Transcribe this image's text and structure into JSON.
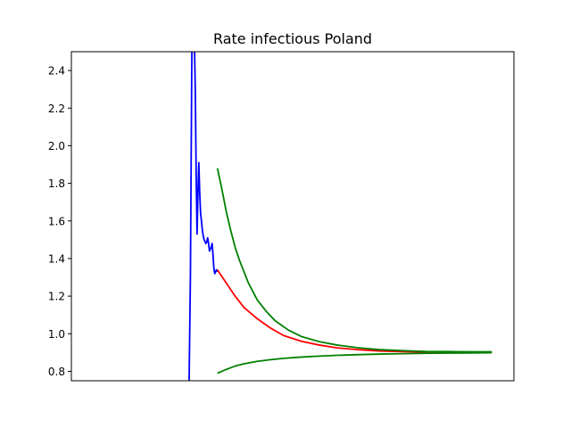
{
  "chart_data": {
    "type": "line",
    "title": "Rate infectious Poland",
    "xlabel": "",
    "ylabel": "",
    "xlim": [
      0,
      100
    ],
    "ylim": [
      0.75,
      2.5
    ],
    "yticks": [
      0.8,
      1.0,
      1.2,
      1.4,
      1.6,
      1.8,
      2.0,
      2.2,
      2.4
    ],
    "ytick_labels": [
      "0.8",
      "1.0",
      "1.2",
      "1.4",
      "1.6",
      "1.8",
      "2.0",
      "2.2",
      "2.4"
    ],
    "show_xticks": false,
    "grid": false,
    "series": [
      {
        "color": "#0000ff",
        "x": [
          26.6,
          26.9,
          27.2,
          27.4,
          27.6,
          27.8,
          28.0,
          28.2,
          28.4,
          28.6,
          28.8,
          29.0,
          29.2,
          29.4,
          29.6,
          29.8,
          30.0,
          30.2,
          30.4,
          30.6,
          30.8,
          31.0,
          31.2,
          31.4,
          31.6,
          31.8,
          32.0,
          32.2,
          32.4,
          32.6,
          32.8,
          33.0
        ],
        "y": [
          0.74,
          1.3,
          2.4,
          3.0,
          2.9,
          2.55,
          2.3,
          1.85,
          1.53,
          1.75,
          1.91,
          1.75,
          1.64,
          1.6,
          1.55,
          1.52,
          1.5,
          1.49,
          1.48,
          1.49,
          1.51,
          1.48,
          1.44,
          1.45,
          1.46,
          1.48,
          1.42,
          1.35,
          1.32,
          1.33,
          1.34,
          1.33
        ]
      },
      {
        "color": "#ff0000",
        "x": [
          33.0,
          35.0,
          37.0,
          39.0,
          42.0,
          45.0,
          48.0,
          52.0,
          56.0,
          60.0,
          65.0,
          70.0,
          75.0,
          80.0,
          85.0,
          90.0,
          95.0
        ],
        "y": [
          1.34,
          1.27,
          1.2,
          1.14,
          1.08,
          1.03,
          0.99,
          0.96,
          0.94,
          0.925,
          0.915,
          0.908,
          0.905,
          0.903,
          0.902,
          0.901,
          0.9
        ]
      },
      {
        "color": "#008000",
        "x": [
          33.0,
          34.0,
          35.0,
          36.0,
          37.0,
          38.0,
          40.0,
          42.0,
          44.0,
          46.0,
          49.0,
          52.0,
          56.0,
          60.0,
          65.0,
          70.0,
          75.0,
          80.0,
          85.0,
          90.0,
          95.0
        ],
        "y": [
          1.88,
          1.77,
          1.65,
          1.55,
          1.46,
          1.39,
          1.27,
          1.18,
          1.12,
          1.07,
          1.02,
          0.985,
          0.958,
          0.94,
          0.925,
          0.915,
          0.91,
          0.906,
          0.905,
          0.904,
          0.904
        ]
      },
      {
        "color": "#008000",
        "x": [
          33.0,
          35.0,
          37.0,
          39.0,
          42.0,
          45.0,
          48.0,
          52.0,
          56.0,
          60.0,
          65.0,
          70.0,
          75.0,
          80.0,
          85.0,
          90.0,
          95.0
        ],
        "y": [
          0.79,
          0.81,
          0.828,
          0.84,
          0.853,
          0.862,
          0.869,
          0.876,
          0.881,
          0.885,
          0.889,
          0.892,
          0.894,
          0.896,
          0.897,
          0.898,
          0.899
        ]
      }
    ]
  }
}
